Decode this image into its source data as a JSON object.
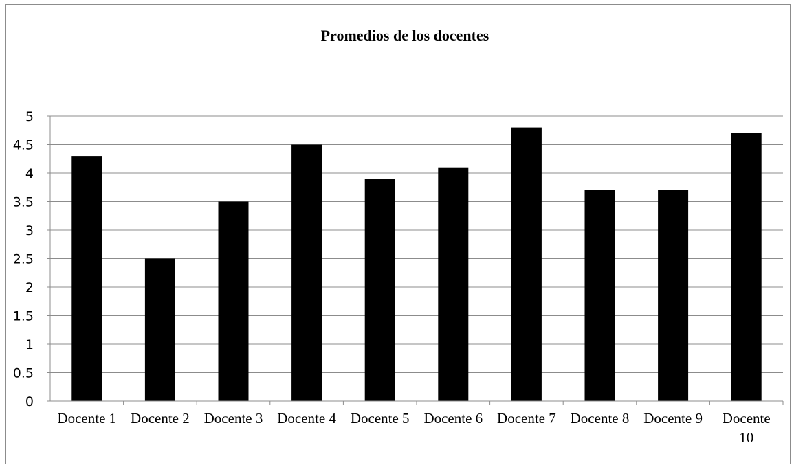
{
  "chart_data": {
    "type": "bar",
    "title": "Promedios de los docentes",
    "xlabel": "",
    "ylabel": "",
    "categories": [
      "Docente 1",
      "Docente 2",
      "Docente 3",
      "Docente 4",
      "Docente 5",
      "Docente 6",
      "Docente 7",
      "Docente 8",
      "Docente 9",
      "Docente 10"
    ],
    "values": [
      4.3,
      2.5,
      3.5,
      4.5,
      3.9,
      4.1,
      4.8,
      3.7,
      3.7,
      4.7
    ],
    "ylim": [
      0,
      5
    ],
    "yticks": [
      "0",
      "0.5",
      "1",
      "1.5",
      "2",
      "2.5",
      "3",
      "3.5",
      "4",
      "4.5",
      "5"
    ],
    "grid": true,
    "legend": "none",
    "colors": {
      "bar": "#000000",
      "grid": "#8c8c8c",
      "axis": "#8c8c8c",
      "border": "#8c8c8c",
      "text": "#000000"
    }
  }
}
